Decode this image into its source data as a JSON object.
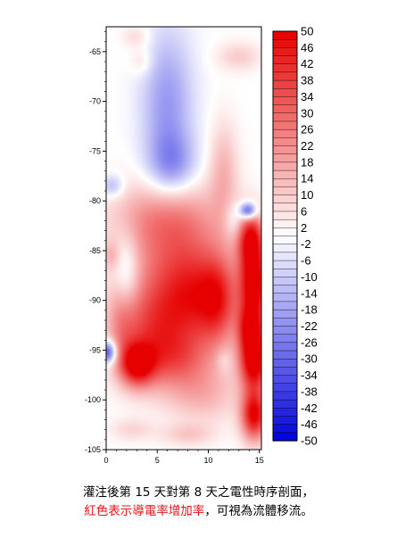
{
  "chart_data": {
    "type": "heatmap",
    "title": "",
    "xlabel": "",
    "ylabel": "",
    "x_ticks": [
      0,
      5,
      10,
      15
    ],
    "y_ticks": [
      -65,
      -70,
      -75,
      -80,
      -85,
      -90,
      -95,
      -100,
      -105
    ],
    "xlim": [
      0,
      15.2
    ],
    "ylim": [
      -105,
      -62.5
    ],
    "colorbar": {
      "ticks": [
        50,
        46,
        42,
        38,
        34,
        30,
        26,
        22,
        18,
        14,
        10,
        6,
        2,
        -2,
        -6,
        -10,
        -14,
        -18,
        -22,
        -26,
        -30,
        -34,
        -38,
        -42,
        -46,
        -50
      ],
      "range": [
        -50,
        50
      ],
      "low_color": "#0000dc",
      "mid_color": "#ffffff",
      "high_color": "#e60000",
      "placement": "right"
    },
    "features": [
      {
        "x": 6.0,
        "y": -70.5,
        "value": -20,
        "sx": 1.8,
        "sy": 5.5
      },
      {
        "x": 6.5,
        "y": -76.5,
        "value": -18,
        "sx": 1.7,
        "sy": 2.2
      },
      {
        "x": 2.0,
        "y": -87.5,
        "value": -16,
        "sx": 0.9,
        "sy": 2.8
      },
      {
        "x": 0.2,
        "y": -95.2,
        "value": -40,
        "sx": 0.6,
        "sy": 0.8
      },
      {
        "x": 13.9,
        "y": -81.0,
        "value": -42,
        "sx": 0.6,
        "sy": 0.6
      },
      {
        "x": 12.5,
        "y": -82.0,
        "value": -10,
        "sx": 0.6,
        "sy": 1.2
      },
      {
        "x": 0.6,
        "y": -78.5,
        "value": -15,
        "sx": 0.8,
        "sy": 0.8
      },
      {
        "x": 6.5,
        "y": -85.0,
        "value": 22,
        "sx": 3.5,
        "sy": 4.5
      },
      {
        "x": 9.0,
        "y": -90.0,
        "value": 32,
        "sx": 2.5,
        "sy": 3.5
      },
      {
        "x": 4.5,
        "y": -93.0,
        "value": 30,
        "sx": 2.5,
        "sy": 3.5
      },
      {
        "x": 3.0,
        "y": -96.5,
        "value": 42,
        "sx": 1.2,
        "sy": 1.5
      },
      {
        "x": 7.0,
        "y": -96.0,
        "value": 18,
        "sx": 2.5,
        "sy": 2.0
      },
      {
        "x": 5.5,
        "y": -81.5,
        "value": 14,
        "sx": 3.5,
        "sy": 2.5
      },
      {
        "x": 11.5,
        "y": -77.0,
        "value": 14,
        "sx": 1.0,
        "sy": 3.5
      },
      {
        "x": 14.2,
        "y": -84.0,
        "value": 50,
        "sx": 0.9,
        "sy": 2.0
      },
      {
        "x": 14.5,
        "y": -88.5,
        "value": 50,
        "sx": 1.0,
        "sy": 2.2
      },
      {
        "x": 14.2,
        "y": -93.0,
        "value": 50,
        "sx": 0.9,
        "sy": 1.8
      },
      {
        "x": 14.5,
        "y": -96.5,
        "value": 50,
        "sx": 1.0,
        "sy": 1.8
      },
      {
        "x": 14.5,
        "y": -101.5,
        "value": 50,
        "sx": 0.9,
        "sy": 1.8
      },
      {
        "x": 11.0,
        "y": -90.0,
        "value": 22,
        "sx": 1.2,
        "sy": 3.0
      },
      {
        "x": 9.5,
        "y": -99.5,
        "value": 14,
        "sx": 2.5,
        "sy": 2.0
      },
      {
        "x": 1.5,
        "y": -92.0,
        "value": 14,
        "sx": 1.0,
        "sy": 3.0
      },
      {
        "x": 13.0,
        "y": -65.5,
        "value": 10,
        "sx": 1.5,
        "sy": 1.0
      },
      {
        "x": 3.0,
        "y": -63.5,
        "value": 8,
        "sx": 1.0,
        "sy": 0.8
      },
      {
        "x": 3.5,
        "y": -66.0,
        "value": 8,
        "sx": 0.8,
        "sy": 1.0
      },
      {
        "x": 0.5,
        "y": -85.5,
        "value": 10,
        "sx": 0.6,
        "sy": 1.0
      },
      {
        "x": 2.5,
        "y": -103.0,
        "value": 8,
        "sx": 1.5,
        "sy": 0.8
      },
      {
        "x": 8.0,
        "y": -103.5,
        "value": 10,
        "sx": 1.8,
        "sy": 0.8
      },
      {
        "x": 11.5,
        "y": -96.0,
        "value": -6,
        "sx": 0.5,
        "sy": 0.8
      }
    ]
  },
  "caption": {
    "line1": "灌注後第 15 天對第 8 天之電性時序剖面，",
    "line2_red": "紅色表示導電率增加率",
    "line2_rest": "，可視為流體移流。"
  }
}
